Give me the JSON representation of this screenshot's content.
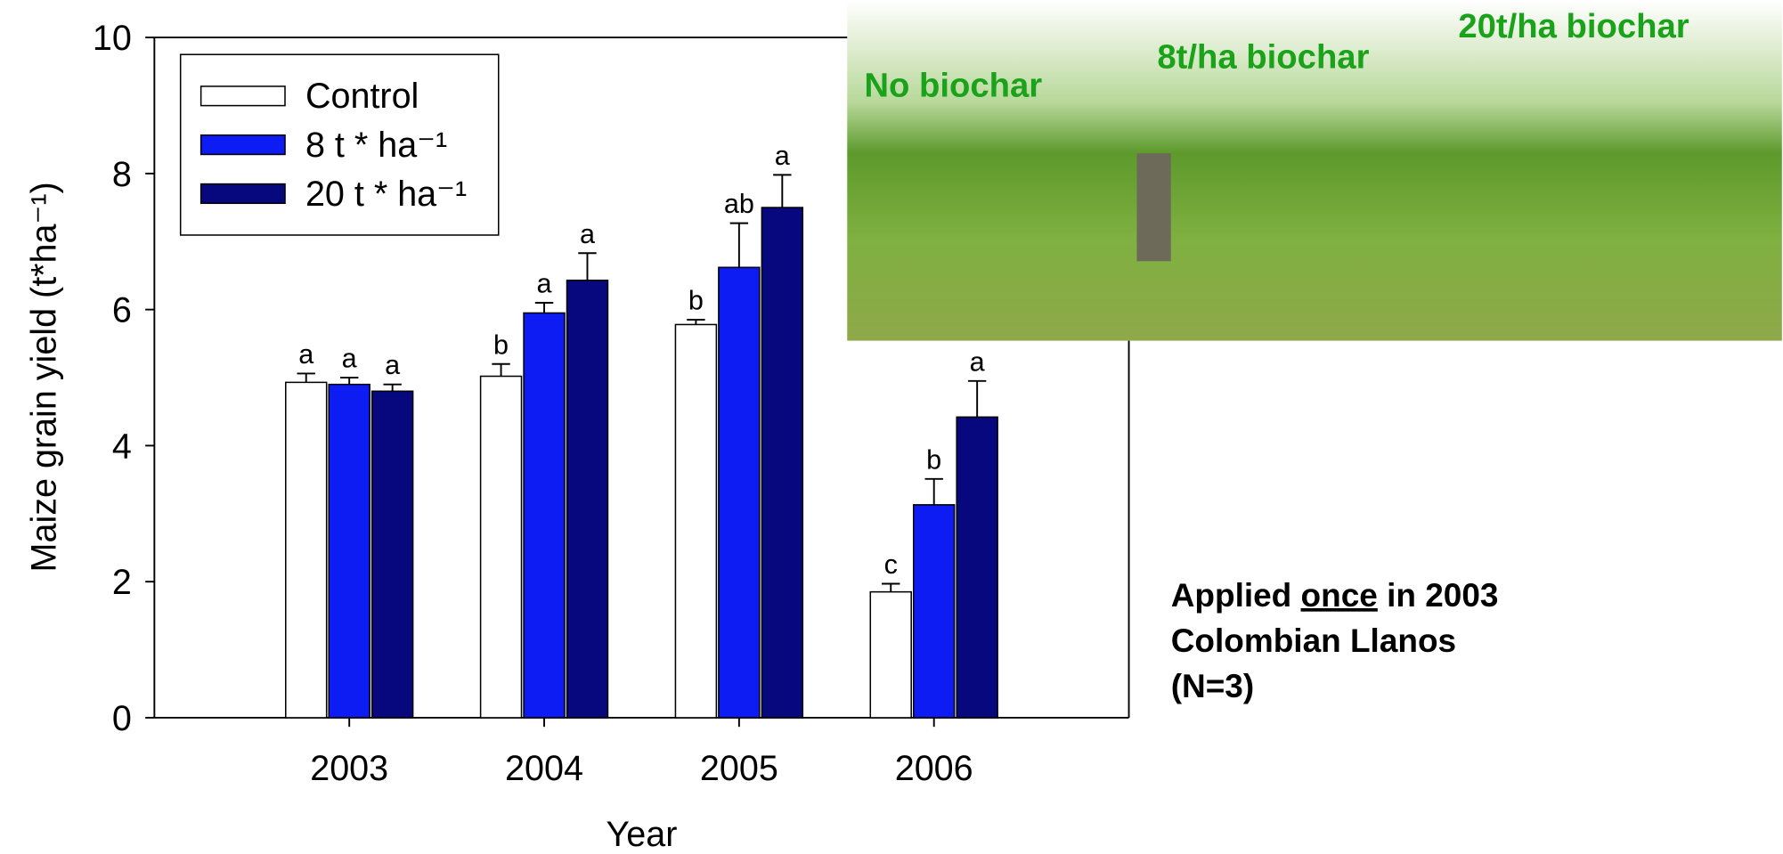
{
  "chart_data": {
    "type": "bar",
    "x_label": "Year",
    "y_label": "Maize grain yield (t*ha⁻¹)",
    "categories": [
      "2003",
      "2004",
      "2005",
      "2006"
    ],
    "series": [
      {
        "name": "Control",
        "color": "#ffffff",
        "values": [
          4.93,
          5.02,
          5.78,
          1.85
        ],
        "errors": [
          0.13,
          0.18,
          0.07,
          0.12
        ],
        "labels": [
          "a",
          "b",
          "b",
          "c"
        ]
      },
      {
        "name": "8 t * ha⁻¹",
        "color": "#0c1cf2",
        "values": [
          4.9,
          5.95,
          6.62,
          3.13
        ],
        "errors": [
          0.1,
          0.15,
          0.65,
          0.38
        ],
        "labels": [
          "a",
          "a",
          "ab",
          "b"
        ]
      },
      {
        "name": "20 t * ha⁻¹",
        "color": "#07077e",
        "values": [
          4.8,
          6.43,
          7.5,
          4.42
        ],
        "errors": [
          0.1,
          0.4,
          0.48,
          0.53
        ],
        "labels": [
          "a",
          "a",
          "a",
          "a"
        ]
      }
    ],
    "ylim": [
      0,
      10
    ],
    "yticks": [
      0,
      2,
      4,
      6,
      8,
      10
    ],
    "legend": "upper left",
    "photo_labels": [
      "No biochar",
      "8t/ha biochar",
      "20t/ha biochar"
    ],
    "note_line1": [
      "Applied ",
      "once",
      " in 2003"
    ],
    "note_lines": [
      "Colombian Llanos",
      "(N=3)"
    ]
  }
}
